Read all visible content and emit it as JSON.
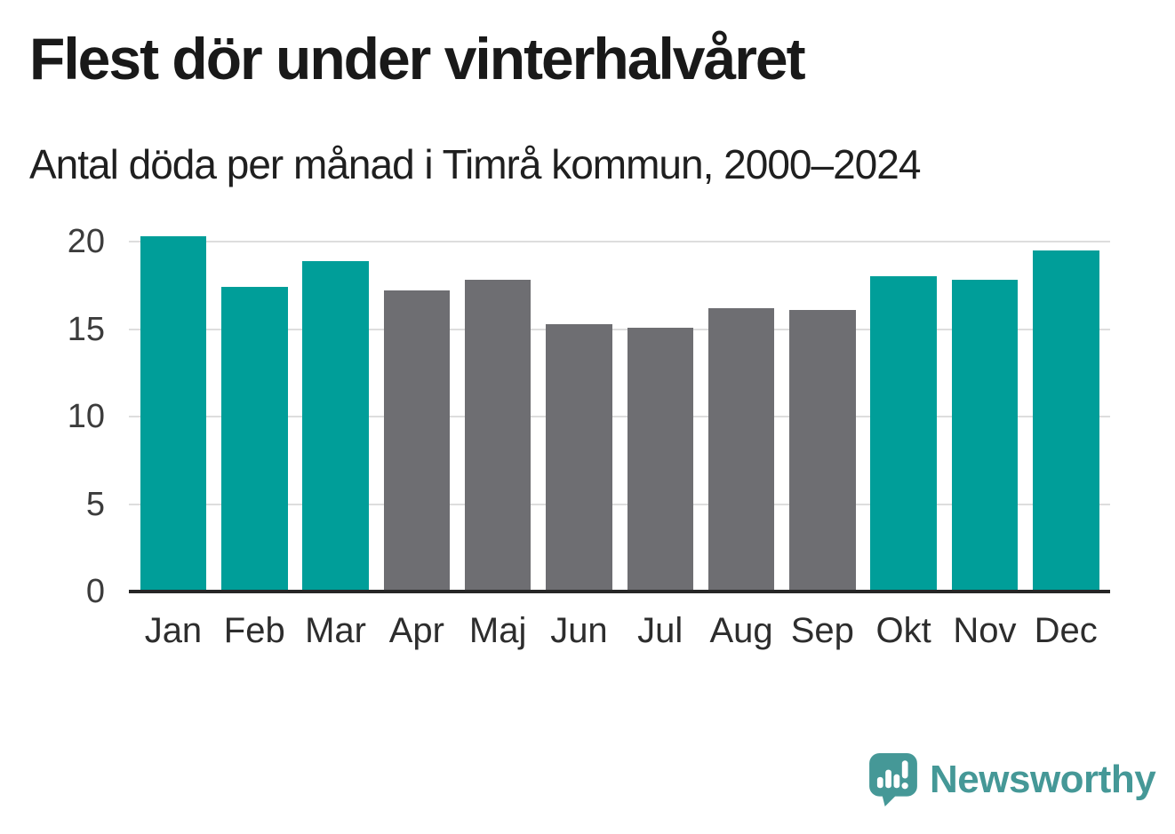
{
  "header": {
    "title": "Flest dör under vinterhalvåret",
    "subtitle": "Antal döda per månad i Timrå kommun, 2000–2024"
  },
  "chart_data": {
    "type": "bar",
    "title": "Flest dör under vinterhalvåret",
    "subtitle": "Antal döda per månad i Timrå kommun, 2000–2024",
    "categories": [
      "Jan",
      "Feb",
      "Mar",
      "Apr",
      "Maj",
      "Jun",
      "Jul",
      "Aug",
      "Sep",
      "Okt",
      "Nov",
      "Dec"
    ],
    "values": [
      20.3,
      17.4,
      18.9,
      17.2,
      17.8,
      15.3,
      15.1,
      16.2,
      16.1,
      18.0,
      17.8,
      19.5
    ],
    "bar_color_keys": [
      "highlight",
      "highlight",
      "highlight",
      "base",
      "base",
      "base",
      "base",
      "base",
      "base",
      "highlight",
      "highlight",
      "highlight"
    ],
    "colors": {
      "highlight": "#009E99",
      "base": "#6E6E72"
    },
    "grid_color": "#DDDDDD",
    "axis_color": "#262626",
    "yticks": [
      0,
      5,
      10,
      15,
      20
    ],
    "ylim": [
      0,
      21.1
    ],
    "grid": true,
    "legend": "none",
    "xlabel": "",
    "ylabel": ""
  },
  "branding": {
    "logo_text": "Newsworthy",
    "logo_color": "#459897",
    "logo_icon": "bar-chart-speech-bubble-icon"
  }
}
